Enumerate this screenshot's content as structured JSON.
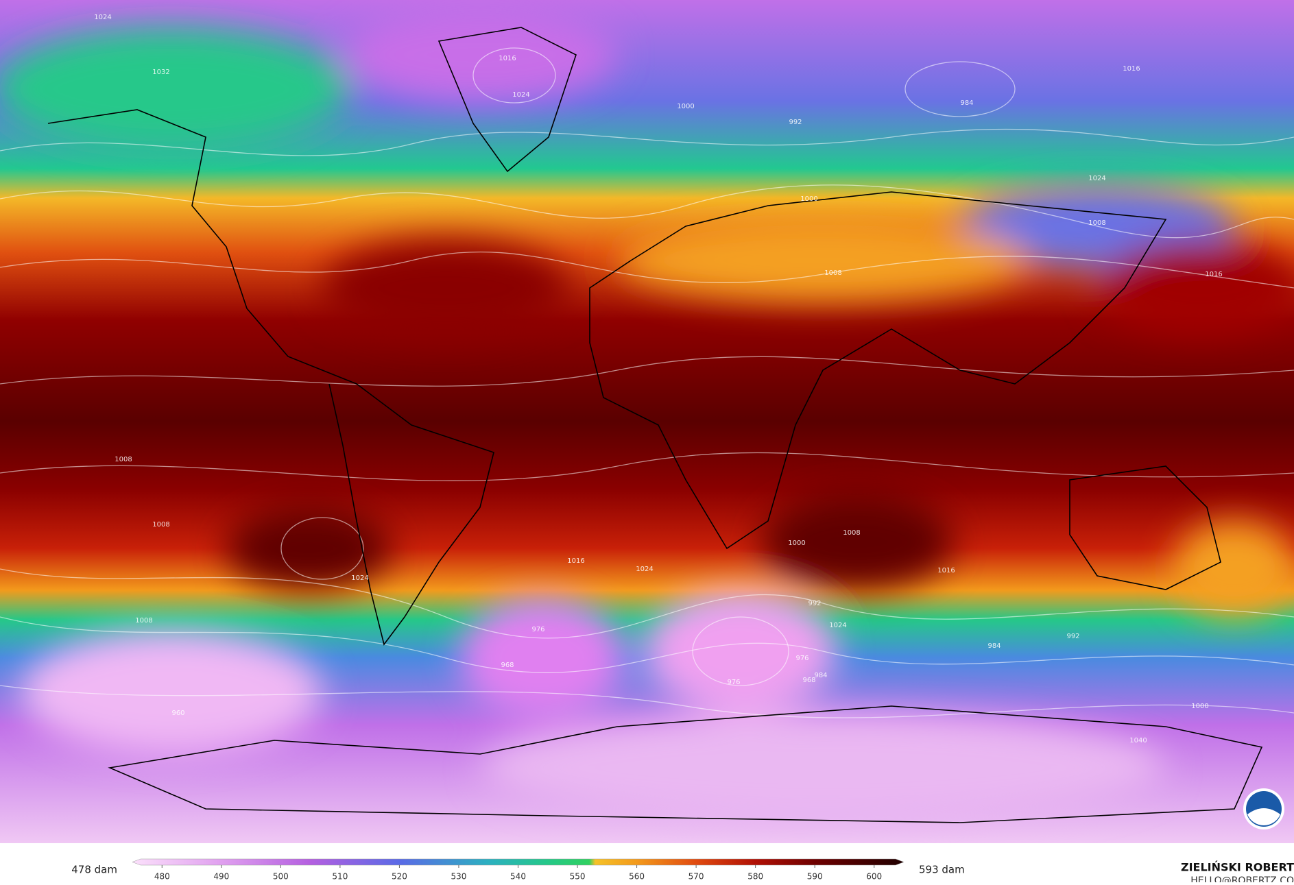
{
  "map": {
    "isobar_labels": [
      1024,
      1032,
      1016,
      1024,
      1008,
      1016,
      1000,
      992,
      984,
      1000,
      1024,
      1008,
      1008,
      1016,
      1024,
      1016,
      1024,
      1008,
      1000,
      1008,
      1016,
      1024,
      1008,
      992,
      984,
      976,
      968,
      960,
      976,
      968,
      976,
      984,
      992,
      1000,
      1040
    ],
    "colorbar": {
      "range": [
        475,
        605
      ],
      "ticks": [
        480,
        490,
        500,
        510,
        520,
        530,
        540,
        550,
        560,
        570,
        580,
        590,
        600
      ],
      "colorscale": [
        {
          "value": 475,
          "color": "#fbe0fb"
        },
        {
          "value": 490,
          "color": "#e0a0ef"
        },
        {
          "value": 505,
          "color": "#b45fe0"
        },
        {
          "value": 520,
          "color": "#5a6ae6"
        },
        {
          "value": 535,
          "color": "#2cb0c0"
        },
        {
          "value": 545,
          "color": "#25c888"
        },
        {
          "value": 552,
          "color": "#30d060"
        },
        {
          "value": 553,
          "color": "#f5c228"
        },
        {
          "value": 560,
          "color": "#f39a1c"
        },
        {
          "value": 570,
          "color": "#e04a10"
        },
        {
          "value": 580,
          "color": "#b01005"
        },
        {
          "value": 590,
          "color": "#6e0000"
        },
        {
          "value": 605,
          "color": "#200000"
        }
      ],
      "min_label": "478 dam",
      "max_label": "593 dam"
    },
    "author": "ZIELIŃSKI ROBERT",
    "email": "HELLO@ROBERTZ.CO"
  }
}
